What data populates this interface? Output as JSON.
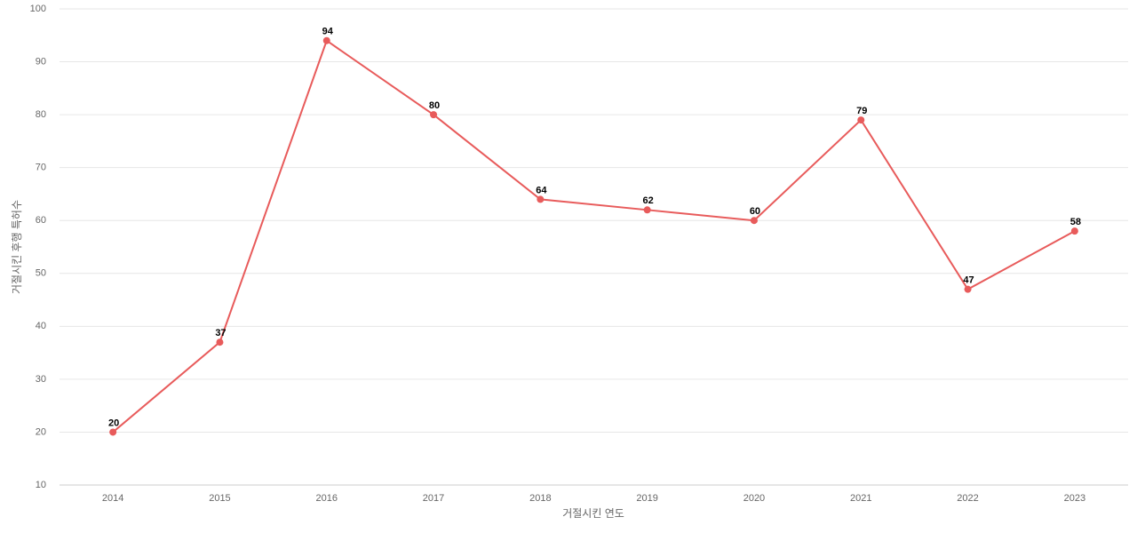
{
  "chart_data": {
    "type": "line",
    "x_label": "거절시킨 연도",
    "y_label": "거절시킨 후행 특허수",
    "categories": [
      "2014",
      "2015",
      "2016",
      "2017",
      "2018",
      "2019",
      "2020",
      "2021",
      "2022",
      "2023"
    ],
    "values": [
      20,
      37,
      94,
      80,
      64,
      62,
      60,
      79,
      47,
      58
    ],
    "color": "#e85b5b",
    "ylim": [
      10,
      100
    ],
    "yticks": [
      10,
      20,
      30,
      40,
      50,
      60,
      70,
      80,
      90,
      100
    ],
    "grid": true
  }
}
